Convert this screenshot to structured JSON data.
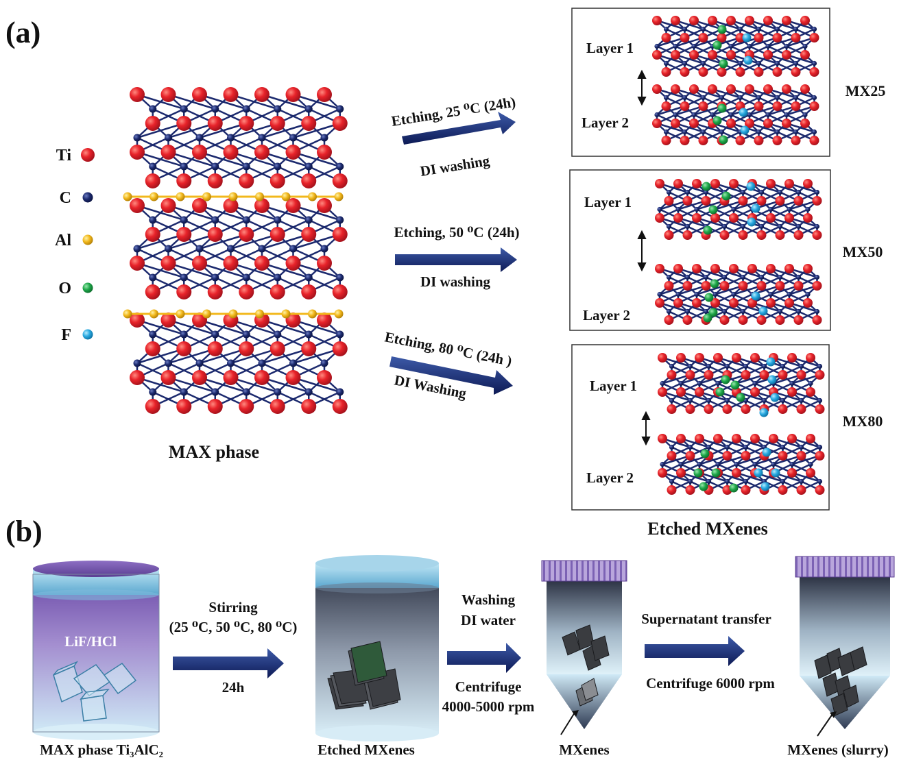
{
  "panels": {
    "a": "(a)",
    "b": "(b)"
  },
  "legend": [
    {
      "symbol": "Ti",
      "color": "#e8232a"
    },
    {
      "symbol": "C",
      "color": "#1c2a6e"
    },
    {
      "symbol": "Al",
      "color": "#f2b81c"
    },
    {
      "symbol": "O",
      "color": "#1fa84a"
    },
    {
      "symbol": "F",
      "color": "#29a9e0"
    }
  ],
  "max_phase_label": "MAX phase",
  "etching_steps": [
    {
      "top": "Etching, 25 ⁰C (24h)",
      "bottom": "DI washing",
      "sample": "MX25"
    },
    {
      "top": "Etching, 50 ⁰C (24h)",
      "bottom": "DI washing",
      "sample": "MX50"
    },
    {
      "top": "Etching, 80 ⁰C (24h )",
      "bottom": "DI Washing",
      "sample": "MX80"
    }
  ],
  "layer_labels": {
    "layer1": "Layer 1",
    "layer2": "Layer 2"
  },
  "etched_caption": "Etched MXenes",
  "process": {
    "jar1_inner": "LiF/HCl",
    "jar1_caption": "MAX phase Ti₃AlC₂",
    "arrow1_top1": "Stirring",
    "arrow1_top2": "(25 ⁰C, 50 ⁰C, 80 ⁰C)",
    "arrow1_bottom": "24h",
    "jar2_caption": "Etched MXenes",
    "arrow2_top1": "Washing",
    "arrow2_top2": "DI water",
    "arrow2_bottom1": "Centrifuge",
    "arrow2_bottom2": "4000-5000 rpm",
    "tube1_caption": "MXenes",
    "arrow3_top": "Supernatant transfer",
    "arrow3_bottom": "Centrifuge 6000 rpm",
    "tube2_caption": "MXenes (slurry)"
  }
}
